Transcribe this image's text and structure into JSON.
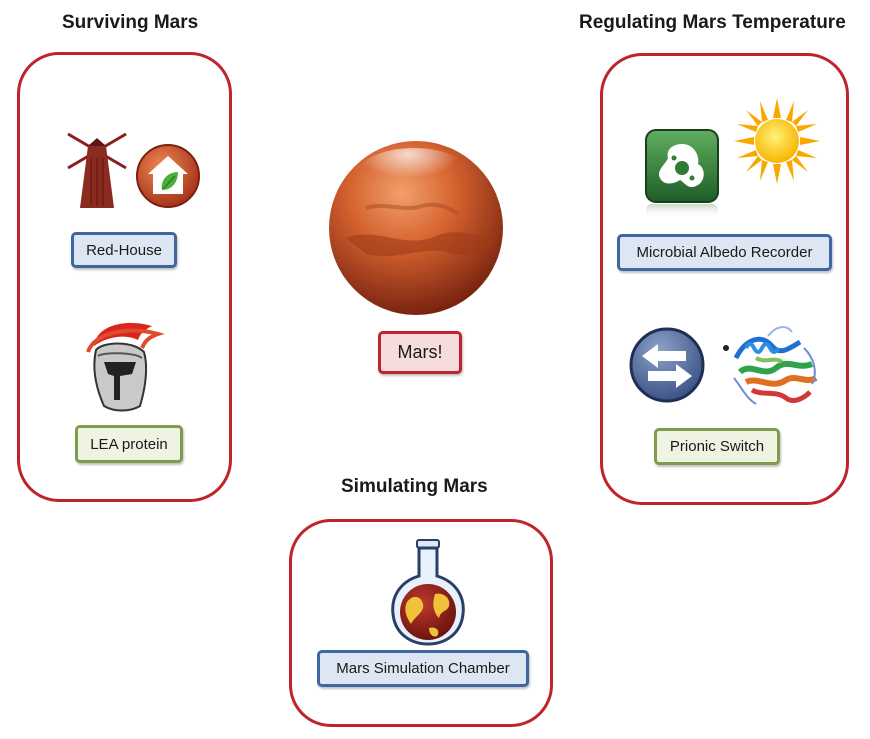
{
  "headings": {
    "surviving": "Surviving Mars",
    "regulating": "Regulating Mars Temperature",
    "simulating": "Simulating Mars"
  },
  "labels": {
    "red_house": "Red-House",
    "lea_protein": "LEA protein",
    "mars": "Mars!",
    "microbial_albedo_recorder": "Microbial Albedo Recorder",
    "prionic_switch": "Prionic Switch",
    "mars_simulation_chamber": "Mars Simulation Chamber"
  },
  "icons": {
    "windmill": "windmill-icon",
    "house": "green-house-icon",
    "helmet": "spartan-helmet-icon",
    "planet": "mars-planet-icon",
    "microbe": "microbe-app-icon",
    "sun": "sun-icon",
    "switch": "switch-arrows-icon",
    "protein": "protein-structure-icon",
    "flask": "flask-globe-icon"
  },
  "colors": {
    "group_border": "#c0242b",
    "blue_border": "#3f66a0",
    "green_border": "#7f9c4c"
  }
}
